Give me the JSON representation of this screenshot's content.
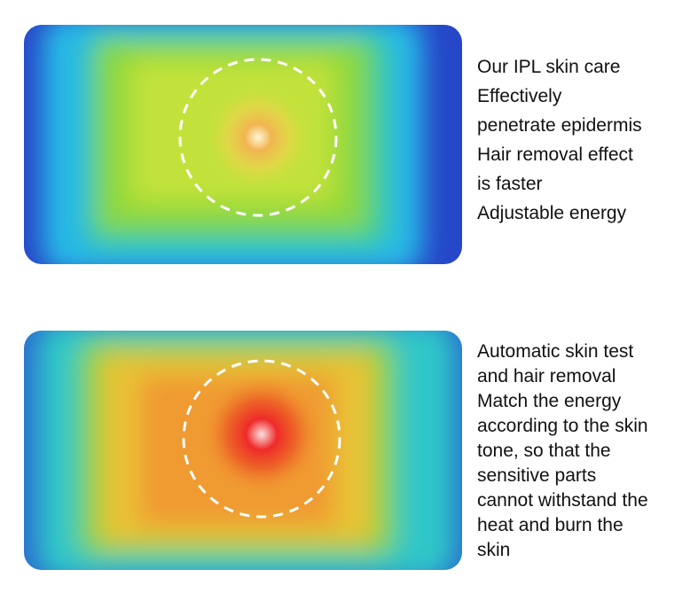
{
  "sections": [
    {
      "lines": [
        "Our IPL skin care",
        "Effectively",
        "penetrate epidermis",
        "Hair removal effect",
        "is faster",
        "Adjustable energy"
      ]
    },
    {
      "lines": [
        "Automatic skin test",
        "and hair removal",
        "Match the energy",
        "according to the skin",
        "tone, so that the",
        "sensitive parts",
        "cannot withstand the",
        "heat and burn the",
        "skin"
      ]
    }
  ]
}
